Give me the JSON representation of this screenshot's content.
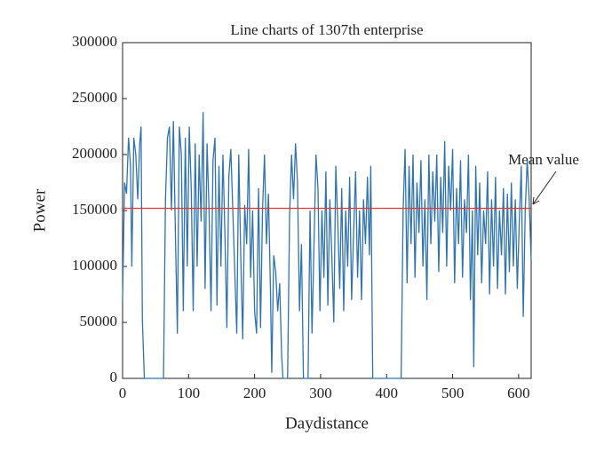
{
  "chart_data": {
    "type": "line",
    "title": "Line charts of 1307th enterprise",
    "x_label": "Daydistance",
    "y_label": "Power",
    "color": "#2f74b0",
    "x": [
      0,
      3,
      6,
      9,
      12,
      14,
      17,
      20,
      23,
      26,
      28,
      30,
      33,
      62,
      65,
      68,
      71,
      74,
      77,
      80,
      83,
      86,
      89,
      92,
      95,
      98,
      101,
      104,
      107,
      110,
      113,
      116,
      119,
      122,
      125,
      128,
      131,
      134,
      137,
      140,
      143,
      146,
      149,
      152,
      155,
      158,
      161,
      164,
      167,
      170,
      173,
      176,
      179,
      182,
      185,
      188,
      191,
      194,
      197,
      200,
      203,
      206,
      209,
      212,
      215,
      218,
      221,
      224,
      226,
      229,
      232,
      235,
      238,
      241,
      243,
      250,
      253,
      256,
      259,
      262,
      265,
      268,
      271,
      274,
      281,
      284,
      287,
      290,
      293,
      296,
      299,
      302,
      305,
      308,
      311,
      314,
      317,
      320,
      323,
      326,
      329,
      332,
      335,
      338,
      341,
      344,
      347,
      350,
      353,
      356,
      359,
      362,
      365,
      368,
      371,
      374,
      376,
      379,
      422,
      425,
      428,
      431,
      434,
      437,
      440,
      443,
      446,
      449,
      452,
      455,
      458,
      461,
      464,
      467,
      470,
      473,
      476,
      479,
      482,
      485,
      488,
      491,
      494,
      497,
      500,
      503,
      506,
      509,
      512,
      515,
      518,
      521,
      524,
      527,
      530,
      532,
      535,
      538,
      541,
      544,
      547,
      550,
      553,
      556,
      559,
      562,
      565,
      568,
      571,
      574,
      577,
      580,
      583,
      586,
      589,
      592,
      595,
      598,
      601,
      604,
      607,
      610,
      613,
      616,
      619
    ],
    "values": [
      70000,
      175000,
      165000,
      215000,
      190000,
      100000,
      215000,
      200000,
      160000,
      210000,
      225000,
      52000,
      0,
      0,
      160000,
      215000,
      225000,
      150000,
      230000,
      130000,
      40000,
      225000,
      200000,
      60000,
      215000,
      100000,
      225000,
      170000,
      60000,
      210000,
      100000,
      200000,
      140000,
      238000,
      80000,
      210000,
      150000,
      60000,
      195000,
      215000,
      65000,
      190000,
      100000,
      200000,
      130000,
      45000,
      180000,
      205000,
      150000,
      95000,
      40000,
      200000,
      110000,
      35000,
      155000,
      120000,
      205000,
      90000,
      150000,
      60000,
      40000,
      170000,
      45000,
      150000,
      200000,
      120000,
      165000,
      80000,
      5000,
      110000,
      95000,
      60000,
      85000,
      20000,
      0,
      0,
      145000,
      200000,
      160000,
      210000,
      175000,
      60000,
      120000,
      0,
      0,
      150000,
      40000,
      120000,
      200000,
      170000,
      60000,
      150000,
      90000,
      185000,
      65000,
      160000,
      110000,
      50000,
      190000,
      140000,
      80000,
      170000,
      60000,
      150000,
      100000,
      180000,
      70000,
      130000,
      185000,
      90000,
      150000,
      70000,
      160000,
      120000,
      180000,
      110000,
      190000,
      0,
      0,
      150000,
      205000,
      85000,
      190000,
      120000,
      200000,
      90000,
      175000,
      130000,
      195000,
      100000,
      160000,
      70000,
      200000,
      120000,
      185000,
      140000,
      200000,
      95000,
      180000,
      130000,
      212000,
      100000,
      190000,
      150000,
      205000,
      85000,
      170000,
      120000,
      195000,
      90000,
      160000,
      130000,
      200000,
      70000,
      150000,
      10000,
      190000,
      110000,
      175000,
      85000,
      150000,
      120000,
      185000,
      75000,
      160000,
      100000,
      180000,
      80000,
      150000,
      110000,
      170000,
      75000,
      165000,
      95000,
      175000,
      100000,
      160000,
      80000,
      140000,
      190000,
      55000,
      150000,
      195000,
      160000,
      105000
    ],
    "mean_line": {
      "value": 152000,
      "color": "#e8342b"
    },
    "annotation": "Mean value",
    "xlim": [
      0,
      619
    ],
    "xticks": [
      0,
      100,
      200,
      300,
      400,
      500,
      600
    ],
    "ylim": [
      0,
      300000
    ],
    "yticks": [
      0,
      50000,
      100000,
      150000,
      200000,
      250000,
      300000
    ]
  }
}
